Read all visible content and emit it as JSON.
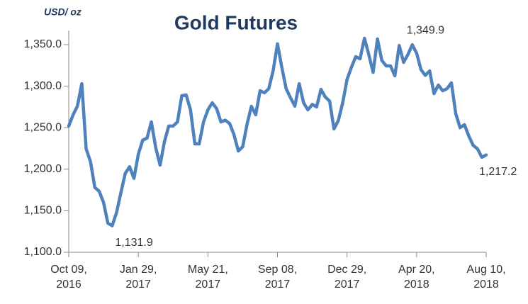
{
  "chart_data": {
    "type": "line",
    "title": "Gold Futures",
    "y_label": "USD/ oz",
    "categories": [
      "Oct 09, 2016",
      null,
      null,
      null,
      null,
      null,
      null,
      null,
      null,
      null,
      null,
      null,
      null,
      null,
      null,
      null,
      "Jan 29, 2017",
      null,
      null,
      null,
      null,
      null,
      null,
      null,
      null,
      null,
      null,
      null,
      null,
      null,
      null,
      null,
      "May 21, 2017",
      null,
      null,
      null,
      null,
      null,
      null,
      null,
      null,
      null,
      null,
      null,
      null,
      null,
      null,
      null,
      "Sep 08, 2017",
      null,
      null,
      null,
      null,
      null,
      null,
      null,
      null,
      null,
      null,
      null,
      null,
      null,
      null,
      null,
      "Dec 29, 2017",
      null,
      null,
      null,
      null,
      null,
      null,
      null,
      null,
      null,
      null,
      null,
      null,
      null,
      null,
      null,
      "Apr 20, 2018",
      null,
      null,
      null,
      null,
      null,
      null,
      null,
      null,
      null,
      null,
      null,
      null,
      null,
      null,
      null,
      "Aug 10, 2018"
    ],
    "series": [
      {
        "name": "Gold Futures",
        "color": "#4f81bd",
        "values": [
          1252,
          1265.5,
          1276,
          1303,
          1224.6,
          1209,
          1178,
          1173.4,
          1160,
          1135,
          1131.9,
          1148,
          1172,
          1195,
          1203,
          1189,
          1218,
          1235,
          1237.4,
          1257,
          1226,
          1205,
          1233,
          1252,
          1252,
          1257,
          1288.6,
          1289.4,
          1271.5,
          1230.5,
          1230.5,
          1257,
          1271.5,
          1280,
          1273,
          1257,
          1259,
          1255,
          1241.6,
          1222,
          1227,
          1254,
          1275.8,
          1265.5,
          1294.5,
          1292,
          1297,
          1318.4,
          1351,
          1322.7,
          1297,
          1286,
          1276,
          1303,
          1280,
          1271.5,
          1278,
          1275,
          1296.2,
          1287,
          1282,
          1248.5,
          1258.7,
          1280,
          1308,
          1322.7,
          1335.5,
          1333,
          1357.7,
          1338,
          1316.7,
          1356.8,
          1331,
          1324.4,
          1324.4,
          1312.5,
          1349,
          1328.7,
          1338,
          1349.9,
          1339.8,
          1320,
          1313,
          1318.4,
          1291,
          1301.4,
          1294.5,
          1297,
          1304,
          1267,
          1250,
          1253.6,
          1240,
          1228.8,
          1224.6,
          1214.3,
          1217.2
        ],
        "value_labels": [
          null,
          null,
          null,
          null,
          null,
          null,
          null,
          null,
          null,
          null,
          "1,131.9",
          null,
          null,
          null,
          null,
          null,
          null,
          null,
          null,
          null,
          null,
          null,
          null,
          null,
          null,
          null,
          null,
          null,
          null,
          null,
          null,
          null,
          null,
          null,
          null,
          null,
          null,
          null,
          null,
          null,
          null,
          null,
          null,
          null,
          null,
          null,
          null,
          null,
          null,
          null,
          null,
          null,
          null,
          null,
          null,
          null,
          null,
          null,
          null,
          null,
          null,
          null,
          null,
          null,
          null,
          null,
          null,
          null,
          null,
          null,
          null,
          null,
          null,
          null,
          null,
          null,
          null,
          null,
          null,
          "1,349.9",
          null,
          null,
          null,
          null,
          null,
          null,
          null,
          null,
          null,
          null,
          null,
          null,
          null,
          null,
          null,
          null,
          "1,217.2"
        ]
      }
    ],
    "ylim": [
      1100,
      1360
    ],
    "yticks": [
      {
        "value": 1100,
        "label": "1,100.0"
      },
      {
        "value": 1150,
        "label": "1,150.0"
      },
      {
        "value": 1200,
        "label": "1,200.0"
      },
      {
        "value": 1250,
        "label": "1,250.0"
      },
      {
        "value": 1300,
        "label": "1,300.0"
      },
      {
        "value": 1350,
        "label": "1,350.0"
      }
    ],
    "grid": false
  }
}
